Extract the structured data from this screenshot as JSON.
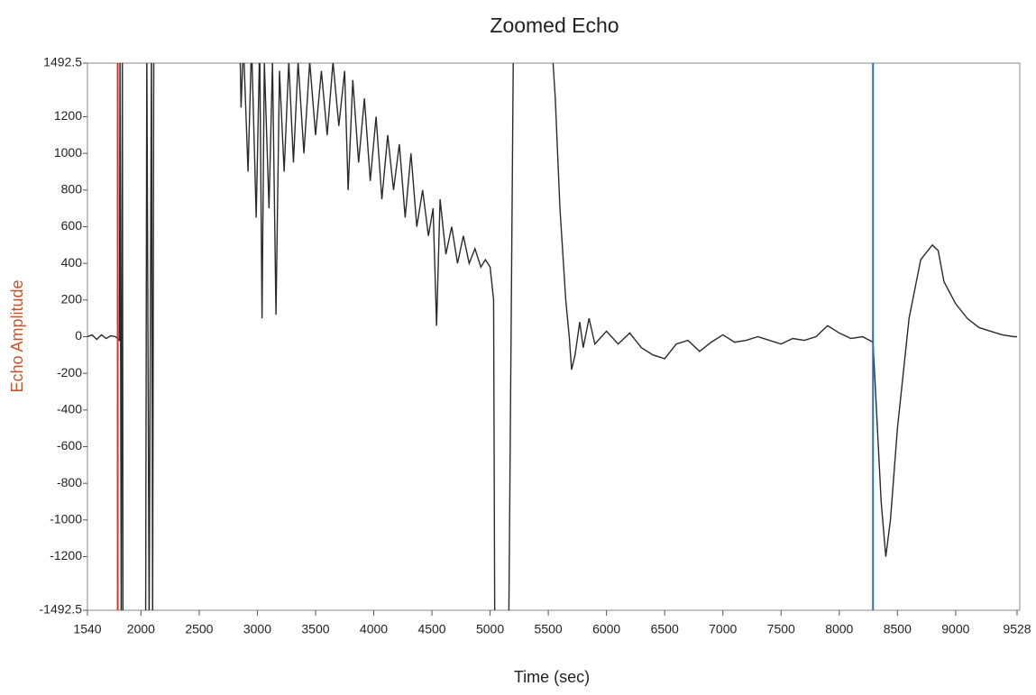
{
  "chart_data": {
    "type": "line",
    "title": "Zoomed Echo",
    "x_label": "Time (sec)",
    "y_label": "Echo Amplitude",
    "y_label_color": "#c8552a",
    "xlim": [
      1540,
      9528
    ],
    "ylim": [
      -1492.5,
      1492.5
    ],
    "xticks": [
      1540,
      2000,
      2500,
      3000,
      3500,
      4000,
      4500,
      5000,
      5500,
      6000,
      6500,
      7000,
      7500,
      8000,
      8500,
      9000,
      9528
    ],
    "yticks": [
      1492.5,
      1200,
      1000,
      800,
      600,
      400,
      200,
      0,
      -200,
      -400,
      -600,
      -800,
      -1000,
      -1200,
      -1492.5
    ],
    "grid": false,
    "cursors": [
      {
        "x": 1800,
        "color": "#e03020"
      },
      {
        "x": 8290,
        "color": "#2e6fb5"
      }
    ],
    "series": [
      {
        "color": "#2a2a2a",
        "x": [
          1540,
          1580,
          1620,
          1660,
          1700,
          1740,
          1780,
          1815,
          1820,
          1830,
          1840,
          1845,
          2040,
          2050,
          2070,
          2090,
          2100,
          2110,
          2850,
          2860,
          2880,
          2920,
          2950,
          2990,
          3020,
          3040,
          3060,
          3100,
          3130,
          3160,
          3190,
          3230,
          3270,
          3310,
          3350,
          3400,
          3450,
          3500,
          3550,
          3600,
          3650,
          3700,
          3750,
          3780,
          3820,
          3870,
          3920,
          3970,
          4020,
          4070,
          4120,
          4170,
          4220,
          4270,
          4320,
          4370,
          4420,
          4470,
          4510,
          4540,
          4570,
          4620,
          4670,
          4720,
          4770,
          4820,
          4870,
          4920,
          4960,
          5000,
          5030,
          5040,
          5160,
          5200,
          5530,
          5560,
          5600,
          5650,
          5680,
          5700,
          5730,
          5770,
          5800,
          5850,
          5900,
          6000,
          6100,
          6200,
          6300,
          6400,
          6500,
          6600,
          6700,
          6800,
          6900,
          7000,
          7100,
          7200,
          7300,
          7400,
          7500,
          7600,
          7700,
          7800,
          7900,
          8000,
          8100,
          8200,
          8290,
          8320,
          8360,
          8400,
          8440,
          8500,
          8600,
          8700,
          8800,
          8850,
          8900,
          9000,
          9100,
          9200,
          9300,
          9400,
          9500,
          9528
        ],
        "values": [
          0,
          10,
          -15,
          10,
          -10,
          5,
          0,
          -20,
          1600,
          -1600,
          1600,
          -1600,
          -1600,
          1600,
          -1600,
          1600,
          -1600,
          1600,
          1600,
          1250,
          1600,
          900,
          1600,
          650,
          1600,
          100,
          1500,
          700,
          1500,
          120,
          1450,
          900,
          1500,
          950,
          1500,
          1000,
          1500,
          1100,
          1450,
          1100,
          1500,
          1150,
          1450,
          800,
          1400,
          950,
          1300,
          850,
          1200,
          750,
          1100,
          800,
          1050,
          650,
          1000,
          600,
          800,
          550,
          700,
          60,
          750,
          450,
          600,
          400,
          550,
          400,
          480,
          380,
          420,
          380,
          200,
          -1600,
          -1600,
          1600,
          1600,
          1300,
          700,
          200,
          0,
          -180,
          -100,
          80,
          -60,
          100,
          -40,
          30,
          -40,
          20,
          -60,
          -100,
          -120,
          -40,
          -20,
          -80,
          -30,
          10,
          -30,
          -20,
          0,
          -20,
          -40,
          -10,
          -20,
          0,
          60,
          20,
          -10,
          0,
          -30,
          -400,
          -900,
          -1200,
          -1000,
          -500,
          100,
          420,
          500,
          470,
          300,
          180,
          100,
          50,
          30,
          10,
          0,
          0
        ]
      }
    ]
  }
}
